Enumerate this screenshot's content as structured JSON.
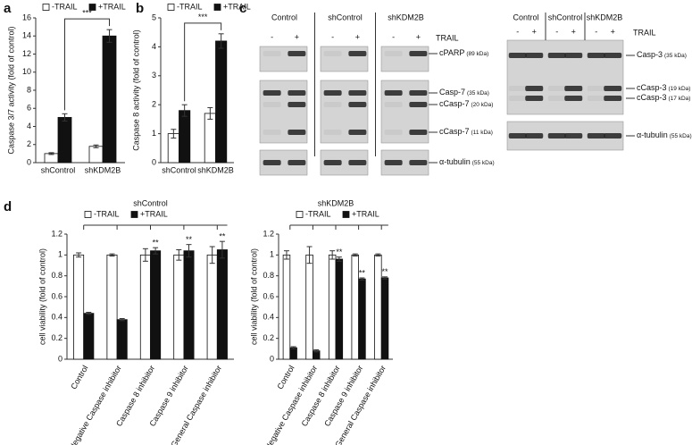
{
  "panels": [
    "a",
    "b",
    "c",
    "d"
  ],
  "chart_data": [
    {
      "type": "bar",
      "ylabel": "Caspase 3/7 activity (fold of control)",
      "categories": [
        "shControl",
        "shKDM2B"
      ],
      "series": [
        {
          "name": "-TRAIL",
          "color": "#ffffff",
          "values": [
            1.0,
            1.8
          ],
          "errors": [
            0.1,
            0.15
          ]
        },
        {
          "name": "+TRAIL",
          "color": "#111111",
          "values": [
            5.0,
            14.0
          ],
          "errors": [
            0.4,
            0.7
          ]
        }
      ],
      "ylim": [
        0,
        16
      ],
      "yticks": [
        0,
        2,
        4,
        6,
        8,
        10,
        12,
        14,
        16
      ],
      "significance": "***"
    },
    {
      "type": "bar",
      "ylabel": "Caspase 8 activity (fold of control)",
      "categories": [
        "shControl",
        "shKDM2B"
      ],
      "series": [
        {
          "name": "-TRAIL",
          "color": "#ffffff",
          "values": [
            1.0,
            1.7
          ],
          "errors": [
            0.15,
            0.2
          ]
        },
        {
          "name": "+TRAIL",
          "color": "#111111",
          "values": [
            1.8,
            4.2
          ],
          "errors": [
            0.2,
            0.25
          ]
        }
      ],
      "ylim": [
        0,
        5
      ],
      "yticks": [
        0,
        1,
        2,
        3,
        4,
        5
      ],
      "significance": "***"
    },
    {
      "type": "bar",
      "title": "shControl",
      "ylabel": "cell viability (fold of control)",
      "xtick_rotation": -60,
      "categories": [
        "Control",
        "Negative Caspase inhibitor",
        "Caspase 8 inhibitor",
        "Caspase 9 inhibitor",
        "General Caspase inhibitor"
      ],
      "series": [
        {
          "name": "-TRAIL",
          "color": "#ffffff",
          "values": [
            1,
            1,
            1,
            1,
            1
          ],
          "errors": [
            0.02,
            0.01,
            0.06,
            0.05,
            0.08
          ]
        },
        {
          "name": "+TRAIL",
          "color": "#111111",
          "values": [
            0.44,
            0.38,
            1.04,
            1.04,
            1.05
          ],
          "errors": [
            0.01,
            0.01,
            0.03,
            0.06,
            0.08
          ],
          "sig": [
            null,
            null,
            "**",
            "**",
            "**"
          ]
        }
      ],
      "ylim": [
        0,
        1.2
      ],
      "yticks": [
        0,
        0.2,
        0.4,
        0.6,
        0.8,
        1,
        1.2
      ]
    },
    {
      "type": "bar",
      "title": "shKDM2B",
      "ylabel": "cell viability (fold of control)",
      "xtick_rotation": -60,
      "categories": [
        "Control",
        "Negative Caspase inhibitor",
        "Caspase 8 inhibitor",
        "Caspase 9 inhibitor",
        "General Caspase inhibitor"
      ],
      "series": [
        {
          "name": "-TRAIL",
          "color": "#ffffff",
          "values": [
            1,
            1,
            1,
            1,
            1
          ],
          "errors": [
            0.04,
            0.08,
            0.04,
            0.01,
            0.01
          ]
        },
        {
          "name": "+TRAIL",
          "color": "#111111",
          "values": [
            0.11,
            0.08,
            0.96,
            0.77,
            0.78
          ],
          "errors": [
            0.01,
            0.01,
            0.02,
            0.01,
            0.01
          ],
          "sig": [
            null,
            null,
            "**",
            "**",
            "**"
          ]
        }
      ],
      "ylim": [
        0,
        1.2
      ],
      "yticks": [
        0,
        0.2,
        0.4,
        0.6,
        0.8,
        1,
        1.2
      ]
    }
  ],
  "blots": [
    {
      "groups": [
        "Control",
        "shControl",
        "shKDM2B"
      ],
      "lanes": [
        "-",
        "+"
      ],
      "treatment": "TRAIL",
      "bands": [
        {
          "name": "cPARP",
          "size": "(89 kDa)"
        },
        {
          "name": "Casp-7",
          "size": "(35 kDa)"
        },
        {
          "name": "cCasp-7",
          "size": "(20 kDa)"
        },
        {
          "name": "cCasp-7",
          "size": "(11 kDa)"
        },
        {
          "name": "α-tubulin",
          "size": "(55 kDa)"
        }
      ]
    },
    {
      "groups": [
        "Control",
        "shControl",
        "shKDM2B"
      ],
      "lanes": [
        "-",
        "+"
      ],
      "treatment": "TRAIL",
      "bands": [
        {
          "name": "Casp-3",
          "size": "(35 kDa)"
        },
        {
          "name": "cCasp-3",
          "size": "(19 kDa)"
        },
        {
          "name": "cCasp-3",
          "size": "(17 kDa)"
        },
        {
          "name": "α-tubulin",
          "size": "(55 kDa)"
        }
      ]
    }
  ]
}
